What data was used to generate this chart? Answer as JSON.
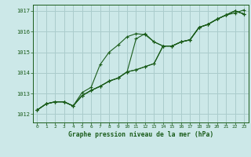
{
  "background_color": "#cce8e8",
  "grid_color": "#aacccc",
  "line_color": "#1a5c1a",
  "title": "Graphe pression niveau de la mer (hPa)",
  "xlim": [
    -0.5,
    23.5
  ],
  "ylim": [
    1011.6,
    1017.3
  ],
  "yticks": [
    1012,
    1013,
    1014,
    1015,
    1016,
    1017
  ],
  "xticks": [
    0,
    1,
    2,
    3,
    4,
    5,
    6,
    7,
    8,
    9,
    10,
    11,
    12,
    13,
    14,
    15,
    16,
    17,
    18,
    19,
    20,
    21,
    22,
    23
  ],
  "series": [
    [
      1012.2,
      1012.5,
      1012.6,
      1012.6,
      1012.4,
      1013.05,
      1013.3,
      1014.4,
      1015.0,
      1015.35,
      1015.75,
      1015.9,
      1015.85,
      1015.5,
      1015.3,
      1015.3,
      1015.5,
      1015.6,
      1016.2,
      1016.35,
      1016.6,
      1016.8,
      1017.0,
      1016.85
    ],
    [
      1012.2,
      1012.5,
      1012.6,
      1012.6,
      1012.4,
      1012.9,
      1013.15,
      1013.35,
      1013.6,
      1013.75,
      1014.05,
      1015.65,
      1015.9,
      1015.5,
      1015.3,
      1015.3,
      1015.5,
      1015.6,
      1016.2,
      1016.35,
      1016.6,
      1016.8,
      1017.0,
      1016.85
    ],
    [
      1012.2,
      1012.5,
      1012.6,
      1012.6,
      1012.4,
      1012.9,
      1013.15,
      1013.35,
      1013.6,
      1013.75,
      1014.05,
      1014.15,
      1014.3,
      1014.45,
      1015.3,
      1015.3,
      1015.5,
      1015.6,
      1016.2,
      1016.35,
      1016.6,
      1016.8,
      1017.0,
      1016.85
    ],
    [
      1012.2,
      1012.5,
      1012.6,
      1012.6,
      1012.4,
      1012.9,
      1013.15,
      1013.35,
      1013.6,
      1013.75,
      1014.05,
      1014.15,
      1014.3,
      1014.45,
      1015.3,
      1015.3,
      1015.5,
      1015.6,
      1016.2,
      1016.35,
      1016.6,
      1016.8,
      1016.9,
      1017.05
    ]
  ]
}
